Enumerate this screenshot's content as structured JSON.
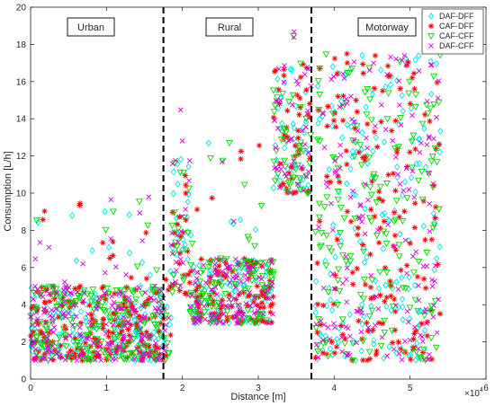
{
  "chart_data": {
    "type": "scatter",
    "xlabel": "Distance [m]",
    "ylabel": "Consumption [L/h]",
    "x_exponent_label": "×10",
    "x_exponent_power": "4",
    "xlim": [
      0,
      6
    ],
    "ylim": [
      0,
      20
    ],
    "x_ticks": [
      0,
      1,
      2,
      3,
      4,
      5,
      6
    ],
    "y_ticks": [
      0,
      2,
      4,
      6,
      8,
      10,
      12,
      14,
      16,
      18,
      20
    ],
    "grid": false,
    "legend_position": "top-right",
    "region_boundaries": [
      1.75,
      3.7
    ],
    "regions": [
      {
        "label": "Urban",
        "x_range": [
          0,
          1.75
        ]
      },
      {
        "label": "Rural",
        "x_range": [
          1.75,
          3.7
        ]
      },
      {
        "label": "Motorway",
        "x_range": [
          3.7,
          5.4
        ]
      }
    ],
    "series": [
      {
        "name": "DAF-DFF",
        "marker": "diamond",
        "color": "#00e5ee"
      },
      {
        "name": "CAF-DFF",
        "marker": "asterisk",
        "color": "#ff0000"
      },
      {
        "name": "CAF-CFF",
        "marker": "triangle-down",
        "color": "#00dd00"
      },
      {
        "name": "DAF-CFF",
        "marker": "x",
        "color": "#dd00dd"
      }
    ],
    "profile": [
      {
        "x0": 0.0,
        "x1": 1.75,
        "base": 1.0,
        "spread": 4.0,
        "density": 1.0,
        "out_max": 9.8
      },
      {
        "x0": 1.75,
        "x1": 1.85,
        "base": 1.0,
        "spread": 3.0,
        "density": 0.5,
        "out_max": 6.0
      },
      {
        "x0": 1.85,
        "x1": 2.1,
        "base": 4.5,
        "spread": 7.5,
        "density": 0.8,
        "out_max": 14.5
      },
      {
        "x0": 2.1,
        "x1": 3.2,
        "base": 3.0,
        "spread": 3.5,
        "density": 0.9,
        "out_max": 13.0
      },
      {
        "x0": 3.2,
        "x1": 3.7,
        "base": 10.0,
        "spread": 7.0,
        "density": 0.8,
        "out_max": 19.3
      },
      {
        "x0": 3.75,
        "x1": 5.4,
        "base": 1.0,
        "spread": 16.5,
        "density": 0.9,
        "out_max": 17.5
      }
    ]
  }
}
